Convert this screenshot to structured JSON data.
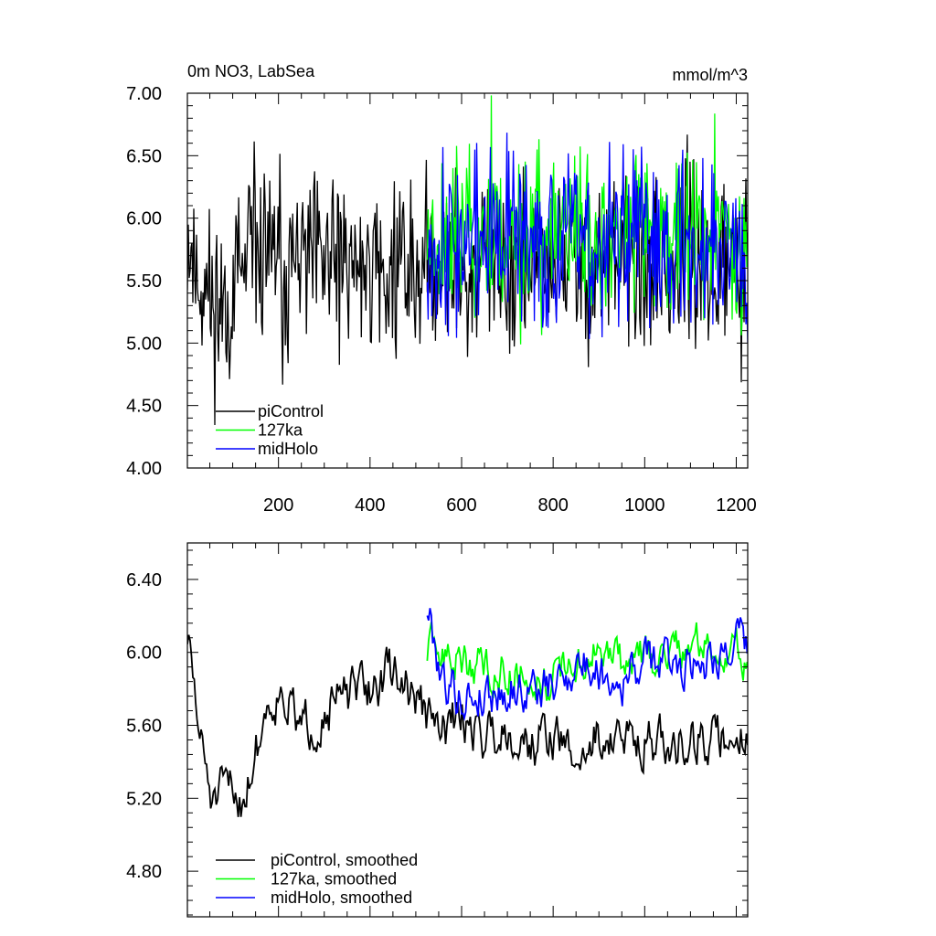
{
  "chart_data": [
    {
      "type": "line",
      "title": "0m NO3, LabSea",
      "units": "mmol/m^3",
      "xlabel": "",
      "ylabel": "",
      "xlim": [
        1,
        1225
      ],
      "ylim": [
        4.0,
        7.0
      ],
      "yticks": [
        "4.00",
        "4.50",
        "5.00",
        "5.50",
        "6.00",
        "6.50",
        "7.00"
      ],
      "xticks": [
        "200",
        "400",
        "600",
        "800",
        "1000",
        "1200"
      ],
      "grid": false,
      "legend_position": "bottom-left",
      "series": [
        {
          "name": "piControl",
          "color": "#000000",
          "x_range": [
            1,
            1225
          ],
          "mean": 5.62,
          "amplitude": 0.36,
          "seed": 11
        },
        {
          "name": "127ka",
          "color": "#00ff00",
          "x_range": [
            525,
            1225
          ],
          "mean": 5.88,
          "amplitude": 0.33,
          "seed": 23
        },
        {
          "name": "midHolo",
          "color": "#0000ff",
          "x_range": [
            525,
            1225
          ],
          "mean": 5.82,
          "amplitude": 0.36,
          "seed": 37
        }
      ]
    },
    {
      "type": "line",
      "title": "",
      "xlabel": "",
      "ylabel": "",
      "xlim": [
        1,
        1225
      ],
      "ylim": [
        4.55,
        6.6
      ],
      "yticks": [
        "4.80",
        "5.20",
        "5.60",
        "6.00",
        "6.40"
      ],
      "xticks": [],
      "grid": false,
      "legend_position": "bottom-left",
      "series": [
        {
          "name": "piControl, smoothed",
          "color": "#000000",
          "x_range": [
            1,
            1225
          ],
          "x": [
            1,
            30,
            60,
            90,
            120,
            150,
            180,
            210,
            250,
            300,
            350,
            400,
            450,
            500,
            550,
            600,
            650,
            700,
            750,
            800,
            850,
            900,
            950,
            1000,
            1050,
            1100,
            1150,
            1200,
            1225
          ],
          "y": [
            6.1,
            5.5,
            5.15,
            5.25,
            5.2,
            5.45,
            5.75,
            5.8,
            5.55,
            5.7,
            5.75,
            5.8,
            5.9,
            5.75,
            5.55,
            5.65,
            5.55,
            5.6,
            5.5,
            5.55,
            5.4,
            5.55,
            5.5,
            5.55,
            5.45,
            5.55,
            5.5,
            5.55,
            5.6
          ],
          "amplitude": 0.14,
          "seed": 51
        },
        {
          "name": "127ka, smoothed",
          "color": "#00ff00",
          "x_range": [
            525,
            1225
          ],
          "x": [
            525,
            600,
            700,
            800,
            850,
            900,
            950,
            1000,
            1100,
            1200,
            1225
          ],
          "y": [
            6.0,
            5.95,
            5.9,
            5.85,
            5.95,
            6.0,
            5.95,
            5.95,
            6.05,
            6.0,
            5.9
          ],
          "amplitude": 0.12,
          "seed": 63
        },
        {
          "name": "midHolo, smoothed",
          "color": "#0000ff",
          "x_range": [
            525,
            1225
          ],
          "x": [
            525,
            560,
            600,
            700,
            800,
            850,
            900,
            950,
            1000,
            1100,
            1200,
            1225
          ],
          "y": [
            6.25,
            5.85,
            5.75,
            5.8,
            5.8,
            5.95,
            5.9,
            5.85,
            5.95,
            5.95,
            6.05,
            6.0
          ],
          "amplitude": 0.13,
          "seed": 79
        }
      ]
    }
  ]
}
